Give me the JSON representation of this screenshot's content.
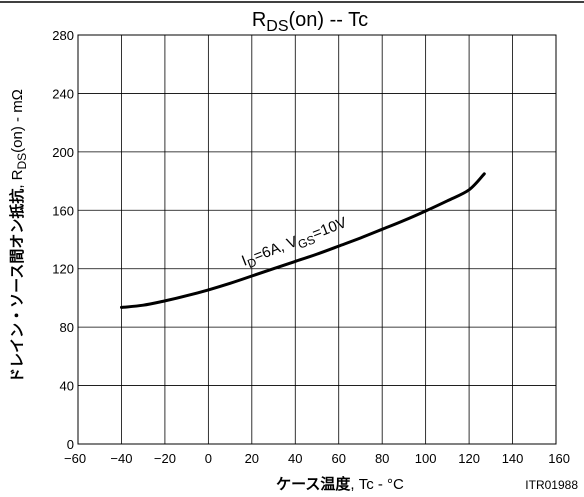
{
  "chart_data": {
    "type": "line",
    "title": {
      "main": "R",
      "sub": "DS",
      "rest": "(on)  --  Tc"
    },
    "xlabel": {
      "bold": "ケース温度",
      "rest": ", Tc  -  °C"
    },
    "ylabel": {
      "bold": "ドレイン・ソース間オン抵抗",
      "prefix": ",  R",
      "sub": "DS",
      "rest": "(on)  -  mΩ"
    },
    "xlim": [
      -60,
      160
    ],
    "ylim": [
      0,
      280
    ],
    "x_ticks": [
      -60,
      -40,
      -20,
      0,
      20,
      40,
      60,
      80,
      100,
      120,
      140,
      160
    ],
    "y_ticks": [
      0,
      40,
      80,
      120,
      160,
      200,
      240,
      280
    ],
    "grid": true,
    "series": [
      {
        "x": [
          -40,
          -30,
          -20,
          -10,
          0,
          10,
          20,
          30,
          40,
          50,
          60,
          70,
          80,
          90,
          100,
          110,
          120,
          127
        ],
        "values": [
          93.5,
          95,
          98,
          101.5,
          105.5,
          110,
          115,
          120,
          125,
          130,
          135.5,
          141,
          147,
          153,
          159.5,
          166.5,
          174,
          185
        ]
      }
    ],
    "annotation": {
      "i": "I",
      "i_sub": "D",
      "i_rest": "=6A, V",
      "v_sub": "GS",
      "v_rest": "=10V"
    },
    "figure_code": "ITR01988"
  }
}
